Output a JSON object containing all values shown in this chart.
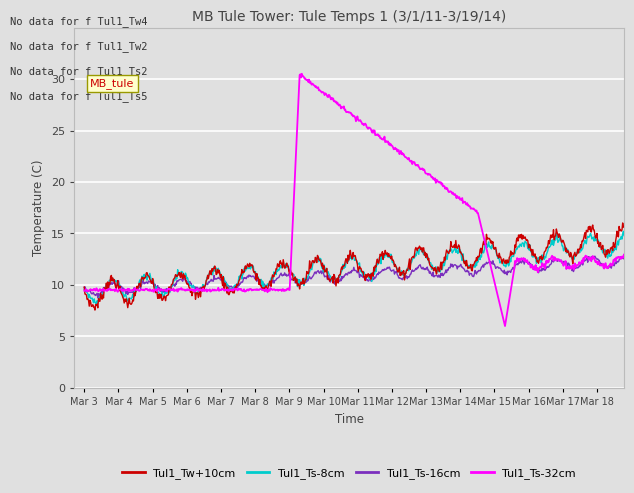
{
  "title": "MB Tule Tower: Tule Temps 1 (3/1/11-3/19/14)",
  "xlabel": "Time",
  "ylabel": "Temperature (C)",
  "ylim": [
    0,
    35
  ],
  "yticks": [
    0,
    5,
    10,
    15,
    20,
    25,
    30
  ],
  "fig_bg": "#e0e0e0",
  "plot_bg": "#e0e0e0",
  "no_data_lines": [
    "No data for f Tul1_Tw4",
    "No data for f Tul1_Tw2",
    "No data for f Tul1_Ts2",
    "No data for f Tul1_Ts5"
  ],
  "tooltip_text": "MB_tule",
  "xtick_labels": [
    "Mar 3",
    "Mar 4",
    "Mar 5",
    "Mar 6",
    "Mar 7",
    "Mar 8",
    "Mar 9",
    "Mar 10",
    "Mar 11",
    "Mar 12",
    "Mar 13",
    "Mar 14",
    "Mar 15",
    "Mar 16",
    "Mar 17",
    "Mar 18"
  ],
  "colors": {
    "red": "#cc0000",
    "cyan": "#00cccc",
    "purple": "#7b2fbe",
    "magenta": "#ff00ff"
  },
  "grid_color": "#ffffff",
  "legend_labels": [
    "Tul1_Tw+10cm",
    "Tul1_Ts-8cm",
    "Tul1_Ts-16cm",
    "Tul1_Ts-32cm"
  ]
}
